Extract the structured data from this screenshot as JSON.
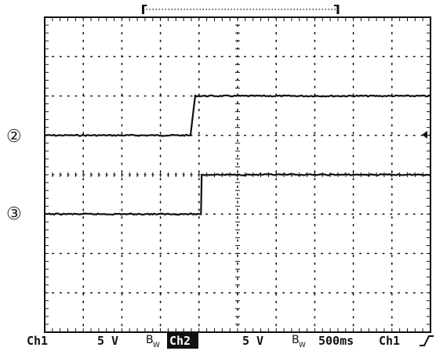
{
  "chart_data": {
    "type": "line",
    "divisions": {
      "x": 10,
      "y": 8
    },
    "xlim": [
      0,
      10
    ],
    "ylim": [
      0,
      8
    ],
    "trigger_position_div": 9.76,
    "colors": {
      "trace": "#111111",
      "grid": "#111111",
      "background": "#ffffff"
    },
    "series": [
      {
        "marker": "②",
        "x": [
          0,
          3.78,
          3.9,
          10
        ],
        "y": [
          5,
          5,
          6,
          6
        ]
      },
      {
        "marker": "③",
        "x": [
          0,
          4.05,
          4.07,
          10
        ],
        "y": [
          3,
          3,
          4,
          4
        ]
      }
    ],
    "status_bar": {
      "ch1": "Ch1",
      "ch1_volts": "5 V",
      "bw1_main": "B",
      "bw1_sub": "W",
      "ch2": "Ch2",
      "ch2_volts": "5 V",
      "bw2_main": "B",
      "bw2_sub": "W",
      "timebase": "500ms",
      "trigger_source": "Ch1",
      "trigger_slope": "rising"
    },
    "record_window": {
      "start_div": 2.55,
      "end_div": 7.6
    }
  }
}
